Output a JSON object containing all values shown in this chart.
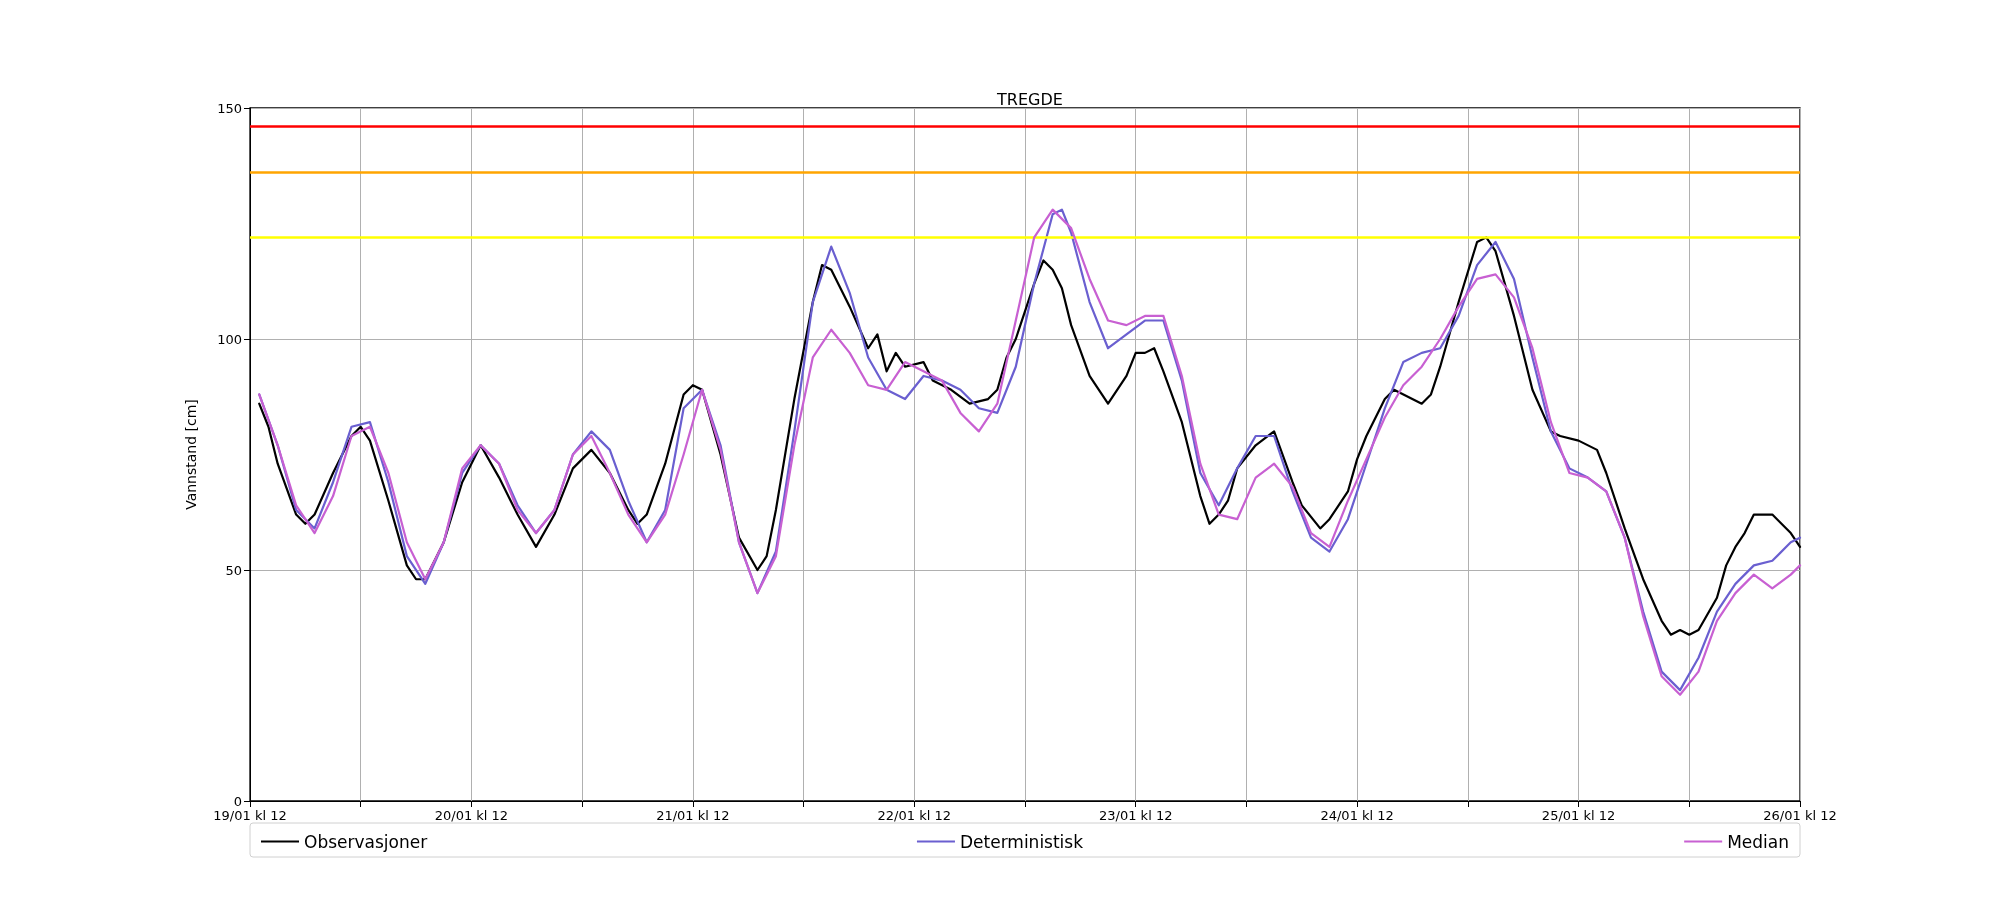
{
  "chart_data": {
    "type": "line",
    "title": "TREGDE",
    "ylabel": "Vannstand [cm]",
    "xlim": [
      "--01-19T12:00",
      "--01-26T12:00"
    ],
    "xticks": [
      {
        "value": "--01-19T12:00",
        "label": "19/01 kl 12"
      },
      {
        "value": "--01-20T00:00",
        "label": null
      },
      {
        "value": "--01-20T12:00",
        "label": "20/01 kl 12"
      },
      {
        "value": "--01-21T00:00",
        "label": null
      },
      {
        "value": "--01-21T12:00",
        "label": "21/01 kl 12"
      },
      {
        "value": "--01-22T00:00",
        "label": null
      },
      {
        "value": "--01-22T12:00",
        "label": "22/01 kl 12"
      },
      {
        "value": "--01-23T00:00",
        "label": null
      },
      {
        "value": "--01-23T12:00",
        "label": "23/01 kl 12"
      },
      {
        "value": "--01-24T00:00",
        "label": null
      },
      {
        "value": "--01-24T12:00",
        "label": "24/01 kl 12"
      },
      {
        "value": "--01-25T00:00",
        "label": null
      },
      {
        "value": "--01-25T12:00",
        "label": "25/01 kl 12"
      },
      {
        "value": "--01-26T00:00",
        "label": null
      },
      {
        "value": "--01-26T12:00",
        "label": "26/01 kl 12"
      }
    ],
    "ylim": [
      0,
      150
    ],
    "yticks": [
      0,
      50,
      100,
      150
    ],
    "grid": true,
    "legend": "bottom",
    "marker": "none",
    "line_style": "solid",
    "ref_lines": [
      {
        "axis": "y",
        "value": 146,
        "color": "#ff0000"
      },
      {
        "axis": "y",
        "value": 136,
        "color": "#ffa500"
      },
      {
        "axis": "y",
        "value": 122,
        "color": "#ffff00"
      }
    ],
    "series": [
      {
        "name": "Observasjoner",
        "color": "#000000",
        "x": [
          "--01-19T13:00",
          "--01-19T14:00",
          "--01-19T15:00",
          "--01-19T17:00",
          "--01-19T18:00",
          "--01-19T19:00",
          "--01-19T21:00",
          "--01-19T23:00",
          "--01-20T00:00",
          "--01-20T01:00",
          "--01-20T03:00",
          "--01-20T05:00",
          "--01-20T06:00",
          "--01-20T07:00",
          "--01-20T09:00",
          "--01-20T11:00",
          "--01-20T13:00",
          "--01-20T15:00",
          "--01-20T17:00",
          "--01-20T19:00",
          "--01-20T21:00",
          "--01-20T23:00",
          "--01-21T01:00",
          "--01-21T03:00",
          "--01-21T05:00",
          "--01-21T06:00",
          "--01-21T07:00",
          "--01-21T09:00",
          "--01-21T11:00",
          "--01-21T12:00",
          "--01-21T13:00",
          "--01-21T15:00",
          "--01-21T17:00",
          "--01-21T19:00",
          "--01-21T20:00",
          "--01-21T21:00",
          "--01-21T23:00",
          "--01-22T01:00",
          "--01-22T02:00",
          "--01-22T03:00",
          "--01-22T05:00",
          "--01-22T07:00",
          "--01-22T08:00",
          "--01-22T09:00",
          "--01-22T10:00",
          "--01-22T11:00",
          "--01-22T13:00",
          "--01-22T14:00",
          "--01-22T16:00",
          "--01-22T18:00",
          "--01-22T20:00",
          "--01-22T21:00",
          "--01-22T22:00",
          "--01-22T23:00",
          "--01-23T01:00",
          "--01-23T02:00",
          "--01-23T03:00",
          "--01-23T04:00",
          "--01-23T05:00",
          "--01-23T07:00",
          "--01-23T09:00",
          "--01-23T11:00",
          "--01-23T12:00",
          "--01-23T13:00",
          "--01-23T14:00",
          "--01-23T15:00",
          "--01-23T17:00",
          "--01-23T19:00",
          "--01-23T20:00",
          "--01-23T21:00",
          "--01-23T22:00",
          "--01-23T23:00",
          "--01-24T01:00",
          "--01-24T03:00",
          "--01-24T05:00",
          "--01-24T06:00",
          "--01-24T08:00",
          "--01-24T09:00",
          "--01-24T11:00",
          "--01-24T12:00",
          "--01-24T13:00",
          "--01-24T15:00",
          "--01-24T16:00",
          "--01-24T19:00",
          "--01-24T20:00",
          "--01-24T21:00",
          "--01-24T23:00",
          "--01-25T01:00",
          "--01-25T02:00",
          "--01-25T03:00",
          "--01-25T05:00",
          "--01-25T07:00",
          "--01-25T09:00",
          "--01-25T10:00",
          "--01-25T12:00",
          "--01-25T14:00",
          "--01-25T15:00",
          "--01-25T17:00",
          "--01-25T19:00",
          "--01-25T21:00",
          "--01-25T22:00",
          "--01-25T23:00",
          "--01-26T00:00",
          "--01-26T01:00",
          "--01-26T03:00",
          "--01-26T04:00",
          "--01-26T05:00",
          "--01-26T06:00",
          "--01-26T07:00",
          "--01-26T09:00",
          "--01-26T11:00",
          "--01-26T12:00"
        ],
        "values": [
          86,
          81,
          73,
          62,
          60,
          62,
          71,
          79,
          81,
          78,
          65,
          51,
          48,
          48,
          56,
          69,
          77,
          70,
          62,
          55,
          62,
          72,
          76,
          71,
          63,
          60,
          62,
          73,
          88,
          90,
          89,
          75,
          57,
          50,
          53,
          63,
          87,
          108,
          116,
          115,
          107,
          98,
          101,
          93,
          97,
          94,
          95,
          91,
          89,
          86,
          87,
          89,
          96,
          100,
          112,
          117,
          115,
          111,
          103,
          92,
          86,
          92,
          97,
          97,
          98,
          93,
          82,
          66,
          60,
          62,
          65,
          72,
          77,
          80,
          69,
          64,
          59,
          61,
          67,
          74,
          79,
          87,
          89,
          86,
          88,
          94,
          108,
          121,
          122,
          119,
          105,
          89,
          80,
          79,
          78,
          76,
          71,
          59,
          48,
          39,
          36,
          37,
          36,
          37,
          44,
          51,
          55,
          58,
          62,
          62,
          58,
          55
        ]
      },
      {
        "name": "Deterministisk",
        "color": "#6a5fd0",
        "x": [
          "--01-19T13:00",
          "--01-19T15:00",
          "--01-19T17:00",
          "--01-19T19:00",
          "--01-19T21:00",
          "--01-19T23:00",
          "--01-20T01:00",
          "--01-20T03:00",
          "--01-20T05:00",
          "--01-20T07:00",
          "--01-20T09:00",
          "--01-20T11:00",
          "--01-20T13:00",
          "--01-20T15:00",
          "--01-20T17:00",
          "--01-20T19:00",
          "--01-20T21:00",
          "--01-20T23:00",
          "--01-21T01:00",
          "--01-21T03:00",
          "--01-21T05:00",
          "--01-21T07:00",
          "--01-21T09:00",
          "--01-21T11:00",
          "--01-21T13:00",
          "--01-21T15:00",
          "--01-21T17:00",
          "--01-21T19:00",
          "--01-21T21:00",
          "--01-21T23:00",
          "--01-22T01:00",
          "--01-22T03:00",
          "--01-22T05:00",
          "--01-22T07:00",
          "--01-22T09:00",
          "--01-22T11:00",
          "--01-22T13:00",
          "--01-22T15:00",
          "--01-22T17:00",
          "--01-22T19:00",
          "--01-22T21:00",
          "--01-22T23:00",
          "--01-23T01:00",
          "--01-23T03:00",
          "--01-23T04:00",
          "--01-23T05:00",
          "--01-23T07:00",
          "--01-23T09:00",
          "--01-23T11:00",
          "--01-23T13:00",
          "--01-23T15:00",
          "--01-23T17:00",
          "--01-23T19:00",
          "--01-23T21:00",
          "--01-23T23:00",
          "--01-24T01:00",
          "--01-24T03:00",
          "--01-24T05:00",
          "--01-24T07:00",
          "--01-24T09:00",
          "--01-24T11:00",
          "--01-24T13:00",
          "--01-24T15:00",
          "--01-24T17:00",
          "--01-24T19:00",
          "--01-24T21:00",
          "--01-24T23:00",
          "--01-25T01:00",
          "--01-25T03:00",
          "--01-25T05:00",
          "--01-25T07:00",
          "--01-25T09:00",
          "--01-25T11:00",
          "--01-25T13:00",
          "--01-25T15:00",
          "--01-25T17:00",
          "--01-25T19:00",
          "--01-25T21:00",
          "--01-25T23:00",
          "--01-26T01:00",
          "--01-26T03:00",
          "--01-26T05:00",
          "--01-26T07:00",
          "--01-26T09:00",
          "--01-26T11:00",
          "--01-26T12:00"
        ],
        "values": [
          88,
          77,
          63,
          59,
          69,
          81,
          82,
          69,
          53,
          47,
          56,
          71,
          77,
          73,
          64,
          58,
          63,
          75,
          80,
          76,
          65,
          56,
          63,
          85,
          89,
          77,
          56,
          45,
          54,
          80,
          108,
          120,
          110,
          96,
          89,
          87,
          92,
          91,
          89,
          85,
          84,
          94,
          112,
          127,
          128,
          123,
          108,
          98,
          101,
          104,
          104,
          91,
          71,
          64,
          72,
          79,
          79,
          67,
          57,
          54,
          61,
          73,
          85,
          95,
          97,
          98,
          105,
          116,
          121,
          113,
          96,
          80,
          72,
          70,
          67,
          57,
          41,
          28,
          24,
          31,
          41,
          47,
          51,
          52,
          56,
          57
        ]
      },
      {
        "name": "Median",
        "color": "#c860d2",
        "x": [
          "--01-19T13:00",
          "--01-19T15:00",
          "--01-19T17:00",
          "--01-19T19:00",
          "--01-19T21:00",
          "--01-19T23:00",
          "--01-20T01:00",
          "--01-20T03:00",
          "--01-20T05:00",
          "--01-20T07:00",
          "--01-20T09:00",
          "--01-20T11:00",
          "--01-20T13:00",
          "--01-20T15:00",
          "--01-20T17:00",
          "--01-20T19:00",
          "--01-20T21:00",
          "--01-20T23:00",
          "--01-21T01:00",
          "--01-21T03:00",
          "--01-21T05:00",
          "--01-21T07:00",
          "--01-21T09:00",
          "--01-21T11:00",
          "--01-21T13:00",
          "--01-21T15:00",
          "--01-21T17:00",
          "--01-21T19:00",
          "--01-21T21:00",
          "--01-21T23:00",
          "--01-22T01:00",
          "--01-22T03:00",
          "--01-22T05:00",
          "--01-22T07:00",
          "--01-22T09:00",
          "--01-22T11:00",
          "--01-22T13:00",
          "--01-22T15:00",
          "--01-22T17:00",
          "--01-22T19:00",
          "--01-22T21:00",
          "--01-22T23:00",
          "--01-23T01:00",
          "--01-23T03:00",
          "--01-23T05:00",
          "--01-23T07:00",
          "--01-23T09:00",
          "--01-23T11:00",
          "--01-23T13:00",
          "--01-23T15:00",
          "--01-23T17:00",
          "--01-23T19:00",
          "--01-23T21:00",
          "--01-23T23:00",
          "--01-24T01:00",
          "--01-24T03:00",
          "--01-24T05:00",
          "--01-24T07:00",
          "--01-24T09:00",
          "--01-24T11:00",
          "--01-24T13:00",
          "--01-24T15:00",
          "--01-24T17:00",
          "--01-24T19:00",
          "--01-24T21:00",
          "--01-24T23:00",
          "--01-25T01:00",
          "--01-25T03:00",
          "--01-25T05:00",
          "--01-25T07:00",
          "--01-25T09:00",
          "--01-25T11:00",
          "--01-25T13:00",
          "--01-25T15:00",
          "--01-25T17:00",
          "--01-25T19:00",
          "--01-25T21:00",
          "--01-25T23:00",
          "--01-26T01:00",
          "--01-26T03:00",
          "--01-26T05:00",
          "--01-26T07:00",
          "--01-26T09:00",
          "--01-26T11:00",
          "--01-26T12:00"
        ],
        "values": [
          88,
          77,
          64,
          58,
          66,
          79,
          81,
          71,
          56,
          48,
          56,
          72,
          77,
          73,
          63,
          58,
          63,
          75,
          79,
          71,
          62,
          56,
          62,
          75,
          89,
          76,
          56,
          45,
          53,
          77,
          96,
          102,
          97,
          90,
          89,
          95,
          93,
          91,
          84,
          80,
          86,
          104,
          122,
          128,
          124,
          113,
          104,
          103,
          105,
          105,
          92,
          73,
          62,
          61,
          70,
          73,
          68,
          58,
          55,
          65,
          74,
          83,
          90,
          94,
          100,
          107,
          113,
          114,
          109,
          98,
          82,
          71,
          70,
          67,
          57,
          40,
          27,
          23,
          28,
          39,
          45,
          49,
          46,
          49,
          51
        ]
      }
    ]
  }
}
